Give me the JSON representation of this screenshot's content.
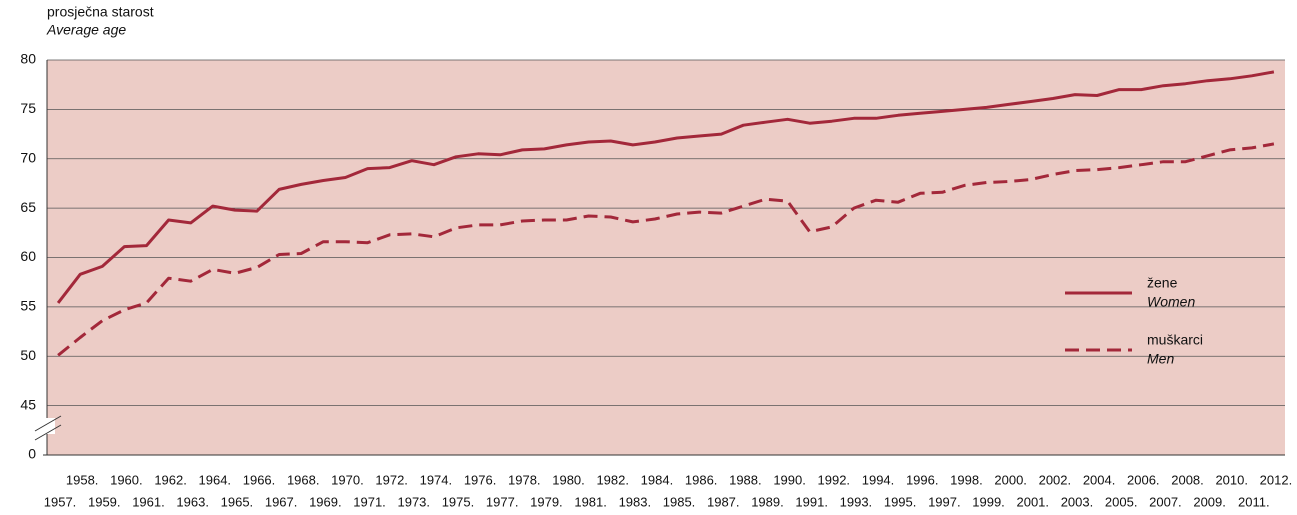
{
  "chart_data": {
    "type": "line",
    "y_label": "prosječna starost",
    "y_label_en": "Average age",
    "categories": [
      "1957.",
      "1958.",
      "1959.",
      "1960.",
      "1961.",
      "1962.",
      "1963.",
      "1964.",
      "1965.",
      "1966.",
      "1967.",
      "1968.",
      "1969.",
      "1970.",
      "1971.",
      "1972.",
      "1973.",
      "1974.",
      "1975.",
      "1976.",
      "1977.",
      "1978.",
      "1979.",
      "1980.",
      "1981.",
      "1982.",
      "1983.",
      "1984.",
      "1985.",
      "1986.",
      "1987.",
      "1988.",
      "1989.",
      "1990.",
      "1991.",
      "1992.",
      "1993.",
      "1994.",
      "1995.",
      "1996.",
      "1997.",
      "1998.",
      "1999.",
      "2000.",
      "2001.",
      "2002.",
      "2003.",
      "2004.",
      "2005.",
      "2006.",
      "2007.",
      "2008.",
      "2009.",
      "2010.",
      "2011.",
      "2012."
    ],
    "series": [
      {
        "name": "žene",
        "name_en": "Women",
        "color": "#a3283a",
        "dash": false,
        "values": [
          55.4,
          58.3,
          59.1,
          61.1,
          61.2,
          63.8,
          63.5,
          65.2,
          64.8,
          64.7,
          66.9,
          67.4,
          67.8,
          68.1,
          69.0,
          69.1,
          69.8,
          69.4,
          70.2,
          70.5,
          70.4,
          70.9,
          71.0,
          71.4,
          71.7,
          71.8,
          71.4,
          71.7,
          72.1,
          72.3,
          72.5,
          73.4,
          73.7,
          74.0,
          73.6,
          73.8,
          74.1,
          74.1,
          74.4,
          74.6,
          74.8,
          75.0,
          75.2,
          75.5,
          75.8,
          76.1,
          76.5,
          76.4,
          77.0,
          77.0,
          77.4,
          77.6,
          77.9,
          78.1,
          78.4,
          78.8
        ]
      },
      {
        "name": "muškarci",
        "name_en": "Men",
        "color": "#a3283a",
        "dash": true,
        "values": [
          50.1,
          51.9,
          53.6,
          54.7,
          55.4,
          57.9,
          57.6,
          58.8,
          58.4,
          59.0,
          60.3,
          60.4,
          61.6,
          61.6,
          61.5,
          62.3,
          62.4,
          62.1,
          63.0,
          63.3,
          63.3,
          63.7,
          63.8,
          63.8,
          64.2,
          64.1,
          63.6,
          63.9,
          64.4,
          64.6,
          64.5,
          65.2,
          65.9,
          65.7,
          62.6,
          63.1,
          65.0,
          65.8,
          65.6,
          66.5,
          66.6,
          67.3,
          67.6,
          67.7,
          67.9,
          68.4,
          68.8,
          68.9,
          69.1,
          69.4,
          69.7,
          69.7,
          70.3,
          70.9,
          71.1,
          71.5
        ]
      }
    ],
    "ylim": [
      0,
      80
    ],
    "axis_break": [
      0,
      40
    ],
    "yticks": [
      0,
      45,
      50,
      55,
      60,
      65,
      70,
      75,
      80
    ],
    "grid": true,
    "background": "#ecccc6"
  }
}
